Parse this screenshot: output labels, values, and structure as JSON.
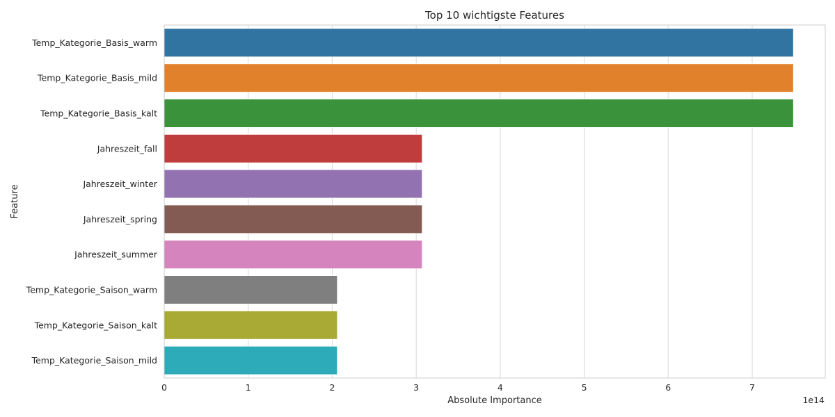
{
  "chart_data": {
    "type": "bar",
    "orientation": "horizontal",
    "title": "Top 10 wichtigste Features",
    "xlabel": "Absolute Importance",
    "ylabel": "Feature",
    "x_offset_label": "1e14",
    "x_ticks": [
      0,
      1,
      2,
      3,
      4,
      5,
      6,
      7
    ],
    "xlim": [
      0,
      7.87
    ],
    "grid": "vertical",
    "categories": [
      "Temp_Kategorie_Basis_warm",
      "Temp_Kategorie_Basis_mild",
      "Temp_Kategorie_Basis_kalt",
      "Jahreszeit_fall",
      "Jahreszeit_winter",
      "Jahreszeit_spring",
      "Jahreszeit_summer",
      "Temp_Kategorie_Saison_warm",
      "Temp_Kategorie_Saison_kalt",
      "Temp_Kategorie_Saison_mild"
    ],
    "values": [
      7.49,
      7.49,
      7.49,
      3.07,
      3.07,
      3.07,
      3.07,
      2.06,
      2.06,
      2.06
    ],
    "colors": [
      "#3274a1",
      "#e1812c",
      "#3a923a",
      "#c03d3e",
      "#9372b2",
      "#845b53",
      "#d684bd",
      "#7f7f7f",
      "#a9aa35",
      "#2eabb8"
    ]
  }
}
